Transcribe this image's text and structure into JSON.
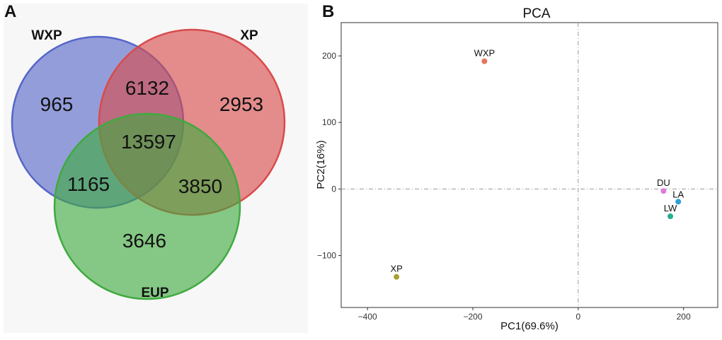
{
  "chart_data": [
    {
      "panel_label": "A",
      "type": "venn",
      "sets": [
        {
          "label": "WXP",
          "color": "#5566c8"
        },
        {
          "label": "XP",
          "color": "#d94a4a"
        },
        {
          "label": "EUP",
          "color": "#3faa3f"
        }
      ],
      "regions": [
        {
          "sets": [
            "WXP"
          ],
          "value": "965"
        },
        {
          "sets": [
            "XP"
          ],
          "value": "2953"
        },
        {
          "sets": [
            "EUP"
          ],
          "value": "3646"
        },
        {
          "sets": [
            "WXP",
            "XP"
          ],
          "value": "6132"
        },
        {
          "sets": [
            "WXP",
            "EUP"
          ],
          "value": "1165"
        },
        {
          "sets": [
            "XP",
            "EUP"
          ],
          "value": "3850"
        },
        {
          "sets": [
            "WXP",
            "XP",
            "EUP"
          ],
          "value": "13597"
        }
      ]
    },
    {
      "panel_label": "B",
      "type": "scatter",
      "title": "PCA",
      "xlabel": "PC1(69.6%)",
      "ylabel": "PC2(16%)",
      "xlim": [
        -450,
        265
      ],
      "ylim": [
        -178,
        250
      ],
      "xticks": [
        -400,
        -200,
        0,
        200
      ],
      "yticks": [
        -100,
        0,
        100,
        200
      ],
      "xtick_labels": [
        "−400",
        "−200",
        "0",
        "200"
      ],
      "ytick_labels": [
        "−100",
        "0",
        "100",
        "200"
      ],
      "reference_lines": {
        "x": 0,
        "y": 0,
        "style": "dot-dash"
      },
      "grid": false,
      "points": [
        {
          "label": "WXP",
          "x": -178,
          "y": 192,
          "color": "#e4755f"
        },
        {
          "label": "XP",
          "x": -345,
          "y": -132,
          "color": "#a8a030"
        },
        {
          "label": "DU",
          "x": 162,
          "y": -3,
          "color": "#dd7bdd"
        },
        {
          "label": "LA",
          "x": 190,
          "y": -19,
          "color": "#2fa0d8"
        },
        {
          "label": "LW",
          "x": 175,
          "y": -41,
          "color": "#22b08c"
        }
      ]
    }
  ]
}
